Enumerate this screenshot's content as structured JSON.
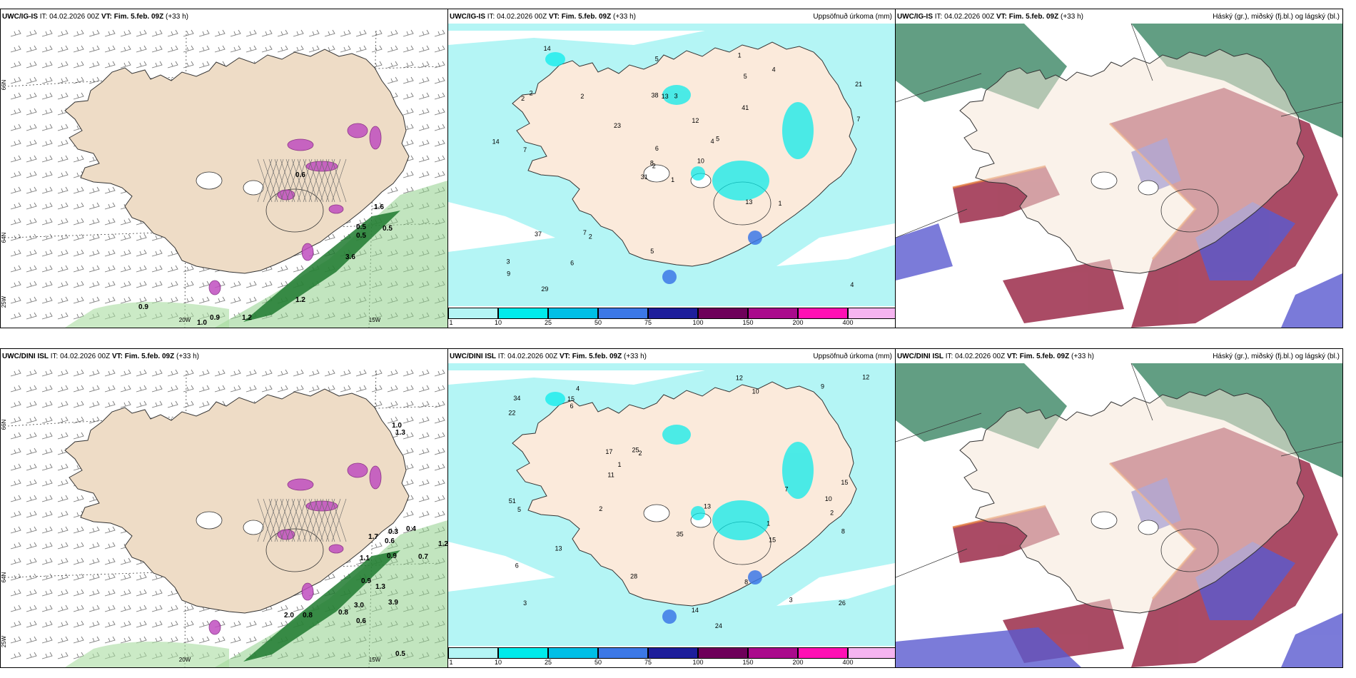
{
  "panels": {
    "p1": {
      "model": "UWC/IG-IS",
      "it_label": "IT:",
      "it": "04.02.2026 00Z",
      "vt_label": "VT:",
      "vt": "Fim. 5.feb. 09Z",
      "lead": "(+33 h)",
      "right": ""
    },
    "p2": {
      "model": "UWC/IG-IS",
      "it_label": "IT:",
      "it": "04.02.2026 00Z",
      "vt_label": "VT:",
      "vt": "Fim. 5.feb. 09Z",
      "lead": "(+33 h)",
      "right": "Uppsöfnuð úrkoma (mm)"
    },
    "p3": {
      "model": "UWC/IG-IS",
      "it_label": "IT:",
      "it": "04.02.2026 00Z",
      "vt_label": "VT:",
      "vt": "Fim. 5.feb. 09Z",
      "lead": "(+33 h)",
      "right": "Háský (gr.), miðský (fj.bl.) og lágský (bl.)"
    },
    "p4": {
      "model": "UWC/DINI ISL",
      "it_label": "IT:",
      "it": "04.02.2026 00Z",
      "vt_label": "VT:",
      "vt": "Fim. 5.feb. 09Z",
      "lead": "(+33 h)",
      "right": ""
    },
    "p5": {
      "model": "UWC/DINI ISL",
      "it_label": "IT:",
      "it": "04.02.2026 00Z",
      "vt_label": "VT:",
      "vt": "Fim. 5.feb. 09Z",
      "lead": "(+33 h)",
      "right": "Uppsöfnuð úrkoma (mm)"
    },
    "p6": {
      "model": "UWC/DINI ISL",
      "it_label": "IT:",
      "it": "04.02.2026 00Z",
      "vt_label": "VT:",
      "vt": "Fim. 5.feb. 09Z",
      "lead": "(+33 h)",
      "right": "Háský (gr.), miðský (fj.bl.) og lágský (bl.)"
    }
  },
  "axes": {
    "lat_66": "66N",
    "lat_64": "64N",
    "lat_65": "65N",
    "lon_25": "25W",
    "lon_20": "20W",
    "lon_15": "15W"
  },
  "legend": {
    "labels": [
      "1",
      "10",
      "25",
      "50",
      "75",
      "100",
      "150",
      "200",
      "400"
    ],
    "colors": [
      "#b4f5f5",
      "#00ebeb",
      "#00bfe6",
      "#3c78e6",
      "#1e1e9b",
      "#6e005a",
      "#aa0a8c",
      "#ff10b4",
      "#f5b4f0"
    ]
  },
  "precip_top": [
    "1",
    "2",
    "2",
    "3",
    "4",
    "2",
    "1",
    "3",
    "5",
    "10",
    "14",
    "4",
    "7",
    "21",
    "31",
    "41",
    "29",
    "38",
    "12",
    "37",
    "23",
    "9",
    "6",
    "13",
    "5",
    "1",
    "2",
    "5",
    "14",
    "13",
    "7",
    "8",
    "5",
    "6",
    "2",
    "4",
    "7"
  ],
  "precip_bottom": [
    "1",
    "2",
    "3",
    "4",
    "2",
    "3",
    "6",
    "10",
    "17",
    "24",
    "22",
    "51",
    "34",
    "26",
    "28",
    "15",
    "35",
    "13",
    "25",
    "13",
    "12",
    "9",
    "11",
    "8",
    "12",
    "15",
    "15",
    "5",
    "6",
    "7",
    "14",
    "8",
    "1",
    "2",
    "10"
  ],
  "wind_top": [
    "0.6",
    "0.5",
    "0.5",
    "0.9",
    "1.2",
    "3.6",
    "1.6",
    "1.0",
    "0.9",
    "1.2",
    "0.5"
  ],
  "wind_bottom": [
    "1.0",
    "0.4",
    "1.3",
    "1.1",
    "1.7",
    "0.3",
    "0.6",
    "0.9",
    "0.7",
    "1.2",
    "0.9",
    "3.9",
    "1.3",
    "3.0",
    "0.8",
    "0.6",
    "0.5",
    "0.8",
    "2.0"
  ]
}
